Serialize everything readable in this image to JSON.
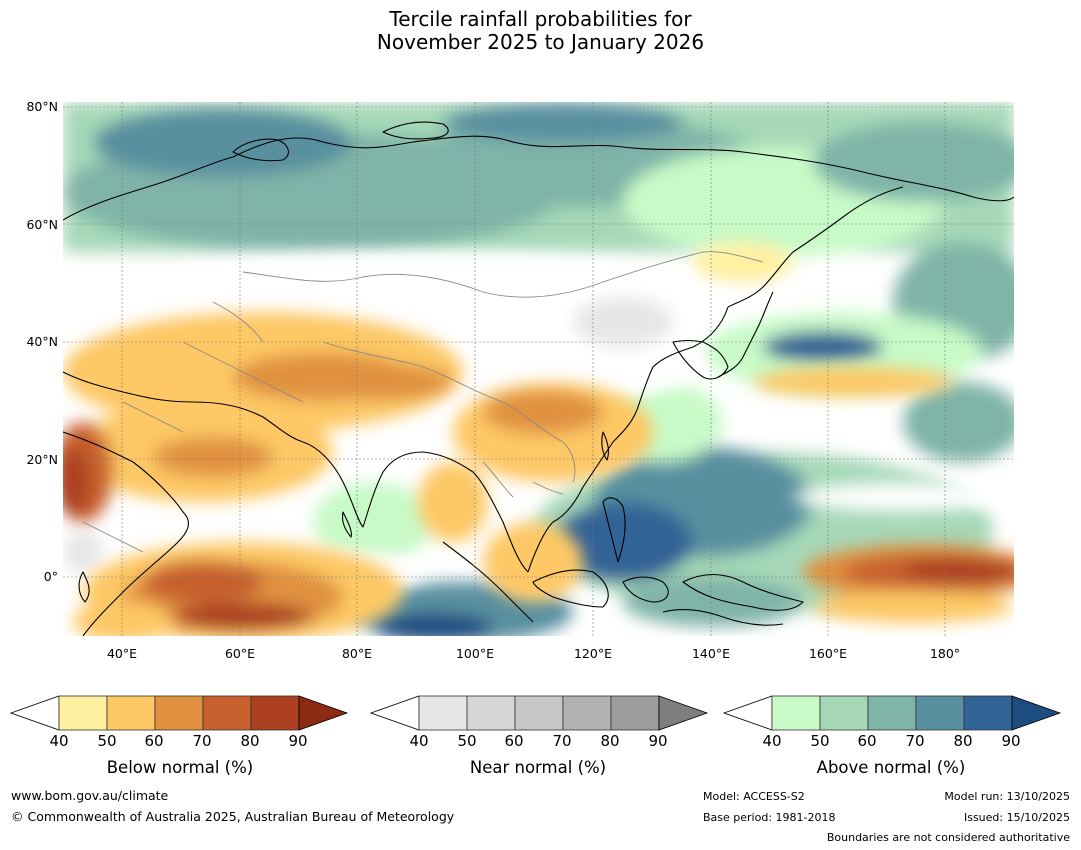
{
  "title_line1": "Tercile rainfall probabilities for",
  "title_line2": "November 2025 to January 2026",
  "map": {
    "lon_range": [
      30,
      191
    ],
    "lat_range": [
      -10,
      81
    ],
    "lat_ticks": [
      "80°N",
      "60°N",
      "40°N",
      "20°N",
      "0°"
    ],
    "lon_ticks": [
      "40°E",
      "60°E",
      "80°E",
      "100°E",
      "120°E",
      "140°E",
      "160°E",
      "180°"
    ],
    "colors": {
      "below": [
        "#fff0a0",
        "#fdc865",
        "#e09140",
        "#c8602e",
        "#ac4020",
        "#8c2a14"
      ],
      "near": [
        "#e6e6e6",
        "#d6d6d6",
        "#c6c6c6",
        "#b2b2b2",
        "#9c9c9c",
        "#7e7e7e"
      ],
      "above": [
        "#c8fac8",
        "#a6d8b8",
        "#80b4a8",
        "#5890a0",
        "#336496",
        "#1c4c80"
      ]
    }
  },
  "colorbars": [
    {
      "label": "Below normal (%)",
      "ticks": [
        "40",
        "50",
        "60",
        "70",
        "80",
        "90"
      ]
    },
    {
      "label": "Near normal (%)",
      "ticks": [
        "40",
        "50",
        "60",
        "70",
        "80",
        "90"
      ]
    },
    {
      "label": "Above normal (%)",
      "ticks": [
        "40",
        "50",
        "60",
        "70",
        "80",
        "90"
      ]
    }
  ],
  "footer": {
    "website": "www.bom.gov.au/climate",
    "copyright": "© Commonwealth of Australia 2025, Australian Bureau of Meteorology",
    "model": "Model: ACCESS-S2",
    "base_period": "Base period: 1981-2018",
    "model_run": "Model run: 13/10/2025",
    "issued": "Issued: 15/10/2025",
    "disclaimer": "Boundaries are not considered authoritative"
  }
}
